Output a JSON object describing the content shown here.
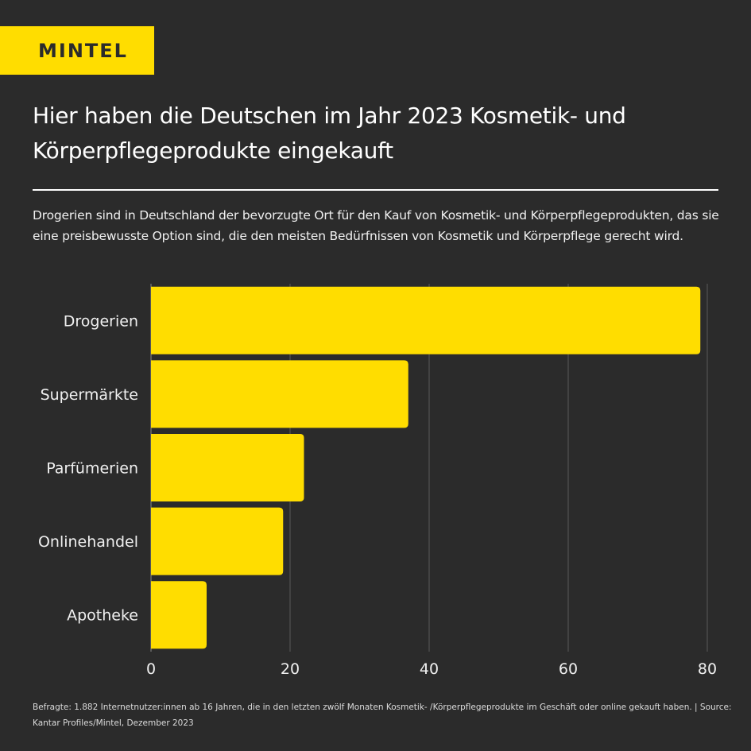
{
  "brand": {
    "logo_text": "MINTEL",
    "accent": "#ffdd00",
    "background": "#2b2b2b"
  },
  "header": {
    "title": "Hier haben die Deutschen im Jahr 2023 Kosmetik- und Körperpflegeprodukte eingekauft",
    "subtitle": "Drogerien sind in Deutschland der bevorzugte Ort für den Kauf von Kosmetik- und Körperpflegeprodukten, das sie eine preisbewusste Option sind, die den meisten Bedürfnissen von Kosmetik und Körperpflege gerecht wird."
  },
  "chart_data": {
    "type": "bar",
    "orientation": "horizontal",
    "title": "Hier haben die Deutschen im Jahr 2023 Kosmetik- und Körperpflegeprodukte eingekauft",
    "categories": [
      "Drogerien",
      "Supermärkte",
      "Parfümerien",
      "Onlinehandel",
      "Apotheke"
    ],
    "values": [
      79,
      37,
      22,
      19,
      8
    ],
    "xlabel": "",
    "ylabel": "",
    "xlim": [
      0,
      80
    ],
    "xticks": [
      0,
      20,
      40,
      60,
      80
    ],
    "xtick_labels": [
      "0",
      "20",
      "40",
      "60",
      "80"
    ],
    "grid": true,
    "legend": "none",
    "bar_color": "#ffdd00"
  },
  "footer": {
    "note": "Befragte: 1.882 Internetnutzer:innen ab 16 Jahren, die in den letzten zwölf Monaten Kosmetik- /Körperpflegeprodukte im Geschäft oder online gekauft haben. | Source: Kantar Profiles/Mintel, Dezember 2023"
  }
}
